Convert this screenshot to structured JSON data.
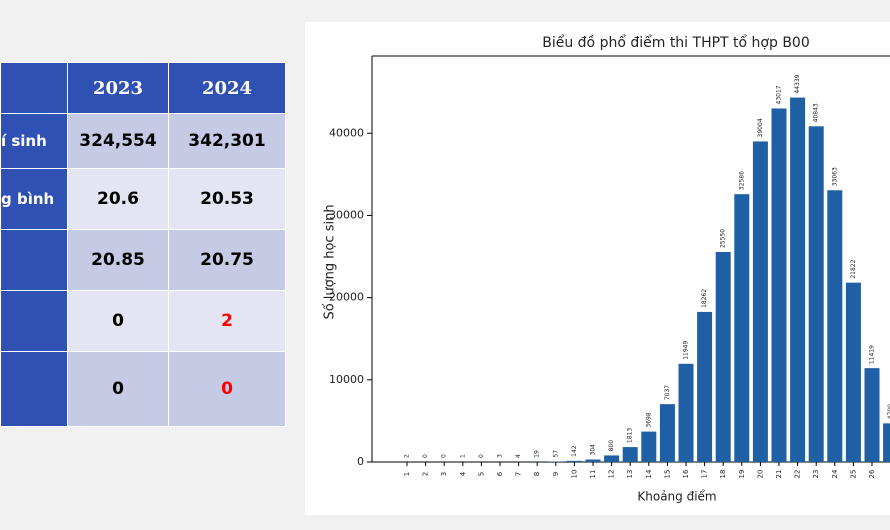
{
  "table": {
    "header": [
      null,
      "2023",
      "2024"
    ],
    "rows": [
      [
        "í sinh",
        "324,554",
        "342,301"
      ],
      [
        "g bình",
        "20.6",
        "20.53"
      ],
      [
        null,
        "20.85",
        "20.75"
      ],
      [
        null,
        "0",
        "2"
      ],
      [
        null,
        "0",
        "0"
      ]
    ],
    "highlight_color": "#ff0000",
    "highlight_cells": [
      [
        3,
        2
      ],
      [
        4,
        2
      ]
    ]
  },
  "chart_data": {
    "type": "bar",
    "title": "Biểu đồ phổ điểm thi THPT tổ hợp B00",
    "xlabel": "Khoảng điểm",
    "ylabel": "Số lượng học sinh",
    "categories": [
      "1",
      "2",
      "3",
      "4",
      "5",
      "6",
      "7",
      "8",
      "9",
      "10",
      "11",
      "12",
      "13",
      "14",
      "15",
      "16",
      "17",
      "18",
      "19",
      "20",
      "21",
      "22",
      "23",
      "24",
      "25",
      "26",
      null
    ],
    "values": [
      2,
      0,
      0,
      1,
      0,
      3,
      4,
      19,
      57,
      142,
      304,
      800,
      1813,
      3698,
      7037,
      11949,
      18262,
      25550,
      32586,
      39004,
      43017,
      44339,
      40843,
      33063,
      21822,
      11419,
      4700
    ],
    "color": "#1f5fa3",
    "ylim": [
      0,
      49400
    ],
    "yticks": [
      0,
      10000,
      20000,
      30000,
      40000
    ]
  }
}
